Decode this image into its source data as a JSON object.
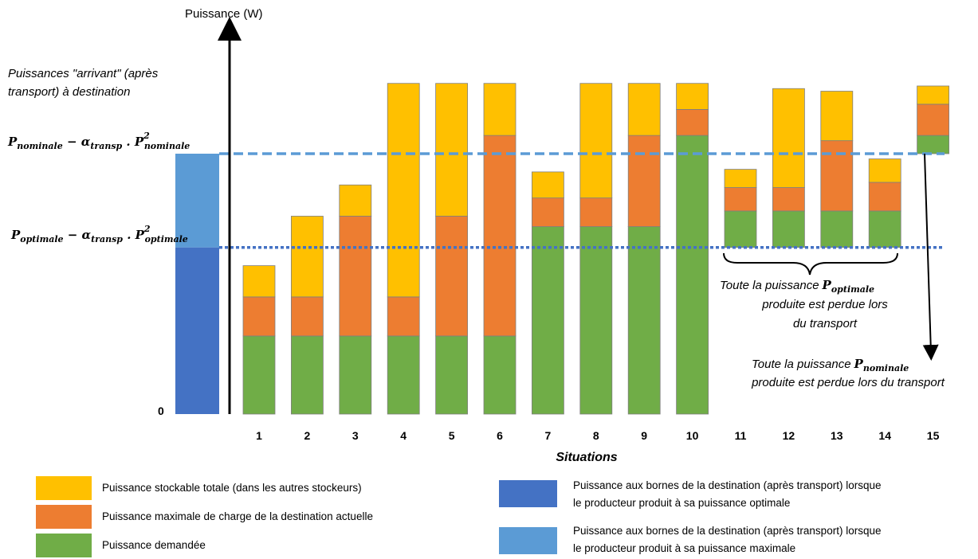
{
  "chart_data": {
    "type": "bar",
    "stacked": true,
    "ylabel": "Puissance (W)",
    "xlabel": "Situations",
    "y_zero_label": "0",
    "left_annotation": "Puissances \"arrivant\" (après transport) à destination",
    "left_annotation_lines": [
      "Puissances \"arrivant\" (après",
      "transport) à destination"
    ],
    "reference_lines": [
      {
        "name": "nominale",
        "label_main": "P",
        "label_sub": "nominale",
        "minus": " − ",
        "alpha": "α",
        "alpha_sub": "transp",
        "dot": " . P",
        "sup": "2",
        "label_sub2": "nominale",
        "value": 100,
        "color": "#5B9BD5",
        "style": "dashed"
      },
      {
        "name": "optimale",
        "label_main": "P",
        "label_sub": "optimale",
        "minus": " − ",
        "alpha": "α",
        "alpha_sub": "transp",
        "dot": " . P",
        "sup": "2",
        "label_sub2": "optimale",
        "value": 64,
        "color": "#4472C4",
        "style": "dotted"
      }
    ],
    "reference_bar": {
      "optimale_value": 64,
      "maximale_value": 100
    },
    "categories": [
      "1",
      "2",
      "3",
      "4",
      "5",
      "6",
      "7",
      "8",
      "9",
      "10",
      "11",
      "12",
      "13",
      "14",
      "15"
    ],
    "series": [
      {
        "name": "Puissance demandée",
        "color": "#70AD47",
        "values": [
          30,
          30,
          30,
          30,
          30,
          30,
          72,
          72,
          72,
          107,
          14,
          14,
          14,
          14,
          7
        ],
        "bases": [
          0,
          0,
          0,
          0,
          0,
          0,
          0,
          0,
          0,
          0,
          64,
          64,
          64,
          64,
          100
        ]
      },
      {
        "name": "Puissance maximale de charge de la destination actuelle",
        "color": "#ED7D31",
        "values": [
          15,
          15,
          46,
          15,
          46,
          77,
          11,
          11,
          35,
          10,
          9,
          9,
          27,
          11,
          12
        ]
      },
      {
        "name": "Puissance stockable totale (dans les autres stockeurs)",
        "color": "#FFC000",
        "values": [
          12,
          31,
          12,
          82,
          51,
          20,
          10,
          44,
          20,
          10,
          7,
          38,
          19,
          9,
          7
        ]
      }
    ],
    "annotations": [
      {
        "type": "brace",
        "from_category": "11",
        "to_category": "14",
        "text_lines": [
          "Toute la puissance",
          "produite est perdue lors",
          "du transport"
        ],
        "math_main": "P",
        "math_sub": "optimale"
      },
      {
        "type": "arrow",
        "category": "15",
        "text_lines": [
          "Toute la puissance",
          "produite est perdue lors du transport"
        ],
        "math_main": "P",
        "math_sub": "nominale"
      }
    ]
  },
  "legend": {
    "items": [
      {
        "label": "Puissance stockable totale (dans les autres stockeurs)",
        "color": "#FFC000"
      },
      {
        "label": "Puissance maximale de charge de la destination actuelle",
        "color": "#ED7D31"
      },
      {
        "label": "Puissance demandée",
        "color": "#70AD47"
      }
    ],
    "items_right": [
      {
        "label_lines": [
          "Puissance aux bornes de la destination (après transport) lorsque",
          "le producteur produit à sa puissance optimale"
        ],
        "color": "#4472C4"
      },
      {
        "label_lines": [
          "Puissance aux bornes de la destination (après transport) lorsque",
          "le producteur produit à sa puissance maximale"
        ],
        "color": "#5B9BD5"
      }
    ]
  }
}
